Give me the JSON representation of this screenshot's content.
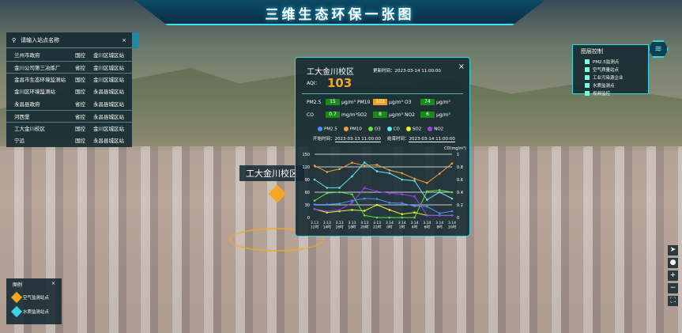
{
  "header": {
    "title": "三维生态环保一张图"
  },
  "search": {
    "placeholder": "请输入站点名称",
    "close": "×",
    "rows": [
      {
        "name": "兰州市政府",
        "type": "国控",
        "area": "金川区城区站"
      },
      {
        "name": "金川公司第三冶炼厂",
        "type": "省控",
        "area": "金川区城区站"
      },
      {
        "name": "金昌市生态环境监测站",
        "type": "国控",
        "area": "金川区城区站"
      },
      {
        "name": "金川区环境监测站",
        "type": "国控",
        "area": "永昌县城区站"
      },
      {
        "name": "永昌县政府",
        "type": "省控",
        "area": "永昌县城区站"
      },
      {
        "name": "河西堡",
        "type": "省控",
        "area": "永昌县城区站"
      },
      {
        "name": "工大金川校区",
        "type": "国控",
        "area": "金川区城区站"
      },
      {
        "name": "宁远",
        "type": "国控",
        "area": "永昌县城区站"
      }
    ]
  },
  "popup": {
    "title": "工大金川校区",
    "update_time": "更新时间：2023-03-14 11:00:00",
    "close": "×",
    "aqi_label": "AQI：",
    "aqi": "103",
    "pollutants": [
      {
        "name": "PM2.5",
        "value": "15",
        "unit": "μg/m³",
        "highlight": false
      },
      {
        "name": "PM10",
        "value": "103",
        "unit": "μg/m³",
        "highlight": true
      },
      {
        "name": "O3",
        "value": "74",
        "unit": "μg/m³",
        "highlight": false
      },
      {
        "name": "CO",
        "value": "0.7",
        "unit": "mg/m³",
        "highlight": false
      },
      {
        "name": "SO2",
        "value": "8",
        "unit": "μg/m³",
        "highlight": false
      },
      {
        "name": "NO2",
        "value": "6",
        "unit": "μg/m³",
        "highlight": false
      }
    ],
    "start_label": "开始时间：",
    "start": "2023-03-13 11:00:00",
    "end_label": "结束时间：",
    "end": "2023-03-14 11:00:00"
  },
  "chart_data": {
    "type": "line",
    "right_unit": "CO(mg/m³)",
    "ylim": [
      0,
      150
    ],
    "y2lim": [
      0,
      1
    ],
    "yticks": [
      "0",
      "30",
      "60",
      "90",
      "120",
      "150"
    ],
    "y2ticks": [
      "0",
      "0.2",
      "0.4",
      "0.6",
      "0.8",
      "1"
    ],
    "categories": [
      "3.13 12时",
      "3.13 14时",
      "3.13 16时",
      "3.13 18时",
      "3.13 20时",
      "3.13 22时",
      "3.14 0时",
      "3.14 2时",
      "3.14 4时",
      "3.14 6时",
      "3.14 8时",
      "3.14 10时"
    ],
    "series": [
      {
        "name": "PM2.5",
        "color": "#4a90ff",
        "axis": "left",
        "values": [
          31,
          31,
          33,
          40,
          45,
          44,
          35,
          34,
          27,
          26,
          10,
          15
        ]
      },
      {
        "name": "PM10",
        "color": "#f0a040",
        "axis": "left",
        "values": [
          123,
          108,
          115,
          130,
          123,
          125,
          112,
          105,
          92,
          82,
          104,
          128
        ]
      },
      {
        "name": "O3",
        "color": "#5ee04a",
        "axis": "left",
        "values": [
          40,
          58,
          60,
          55,
          5,
          0,
          0,
          0,
          0,
          62,
          65,
          60
        ]
      },
      {
        "name": "CO",
        "color": "#5fe6f0",
        "axis": "right",
        "values": [
          0.6,
          0.47,
          0.47,
          0.65,
          0.87,
          0.73,
          0.7,
          0.6,
          0.58,
          0.28,
          0.4,
          0.3
        ]
      },
      {
        "name": "SO2",
        "color": "#f0f030",
        "axis": "left",
        "values": [
          20,
          12,
          15,
          18,
          16,
          30,
          18,
          8,
          12,
          5,
          5,
          5
        ]
      },
      {
        "name": "NO2",
        "color": "#9a40f0",
        "axis": "left",
        "values": [
          20,
          15,
          18,
          35,
          70,
          62,
          58,
          55,
          50,
          5,
          5,
          5
        ]
      }
    ]
  },
  "layers": {
    "title": "图层控制",
    "items": [
      "PM2.5监测点",
      "空气质量站点",
      "工业污染源企业",
      "水质监测点",
      "视频监控"
    ]
  },
  "map_legend": {
    "title": "图例",
    "close": "×",
    "items": [
      {
        "label": "空气监测站点",
        "color": "#f5a623"
      },
      {
        "label": "水质监测站点",
        "color": "#39d3e6"
      }
    ]
  },
  "map_label": "工大金川校区",
  "tools": [
    "➤",
    "●",
    "+",
    "−",
    "⛶"
  ]
}
